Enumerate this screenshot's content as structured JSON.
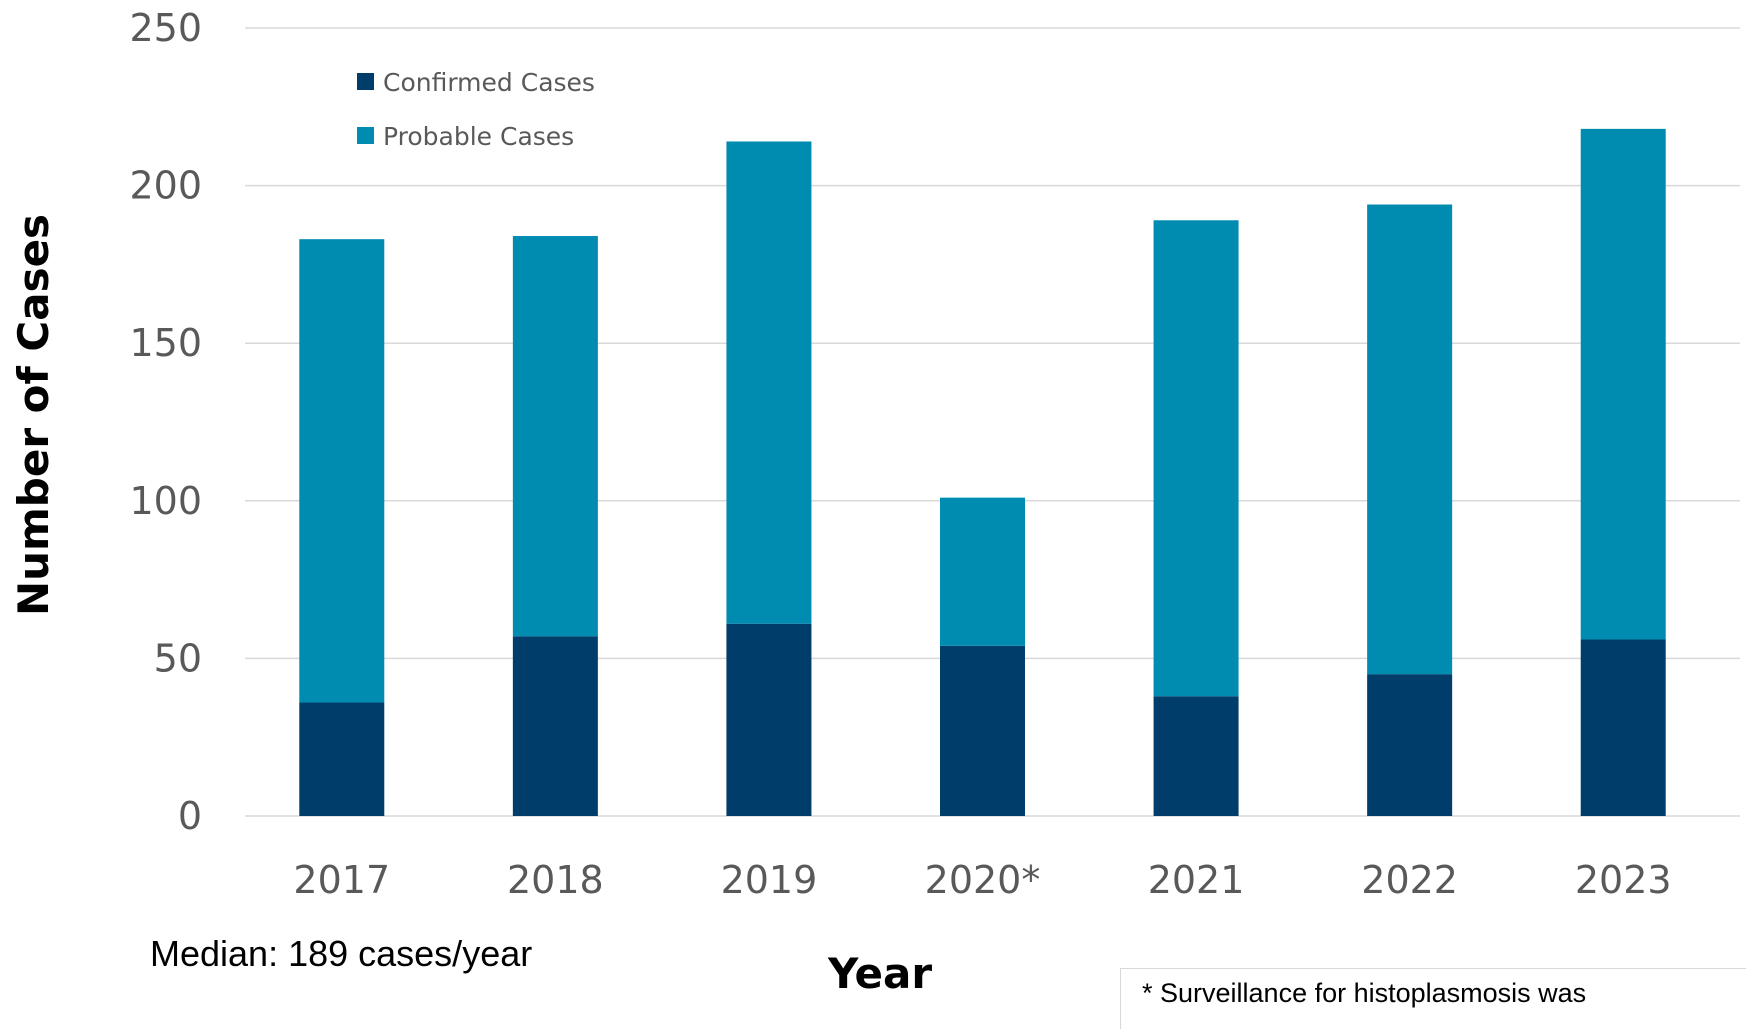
{
  "chart_data": {
    "type": "bar",
    "stacked": true,
    "categories": [
      "2017",
      "2018",
      "2019",
      "2020*",
      "2021",
      "2022",
      "2023"
    ],
    "series": [
      {
        "name": "Confirmed Cases",
        "values": [
          36,
          57,
          61,
          54,
          38,
          45,
          56
        ],
        "color": "#003d6b"
      },
      {
        "name": "Probable Cases",
        "values": [
          147,
          127,
          153,
          47,
          151,
          149,
          162
        ],
        "color": "#008bb0"
      }
    ],
    "totals": [
      183,
      184,
      214,
      101,
      189,
      194,
      218
    ],
    "xlabel": "Year",
    "ylabel": "Number of Cases",
    "ylim": [
      0,
      250
    ],
    "yticks": [
      "0",
      "50",
      "100",
      "150",
      "200",
      "250"
    ],
    "grid": true,
    "legend_position": "top-left",
    "annotations": {
      "median": "Median: 189 cases/year",
      "footnote": "* Surveillance for histoplasmosis was"
    }
  },
  "colors": {
    "gridline": "#d9d9d9",
    "confirmed": "#003d6b",
    "probable": "#008bb0"
  }
}
